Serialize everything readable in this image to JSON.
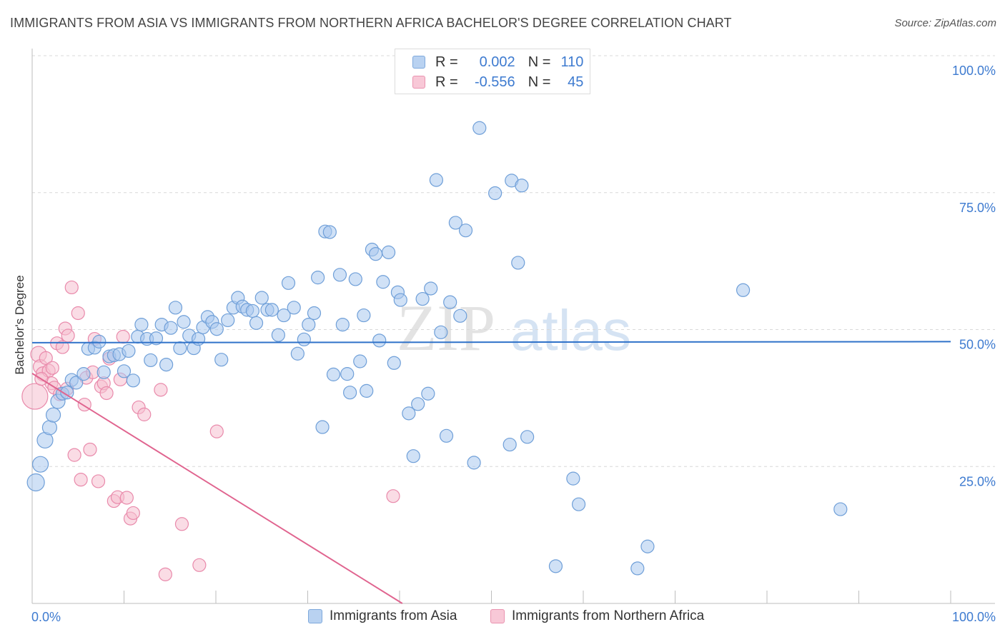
{
  "title": "IMMIGRANTS FROM ASIA VS IMMIGRANTS FROM NORTHERN AFRICA BACHELOR'S DEGREE CORRELATION CHART",
  "source": "Source: ZipAtlas.com",
  "watermark": {
    "part1": "ZIP",
    "part2": "atlas"
  },
  "stats": {
    "r_label": "R =",
    "n_label": "N =",
    "rows": [
      {
        "r": "0.002",
        "n": "110",
        "color": "#7ea9dc"
      },
      {
        "r": "-0.556",
        "n": "45",
        "color": "#ea93b0"
      }
    ]
  },
  "legend": {
    "items": [
      {
        "label": "Immigrants from Asia"
      },
      {
        "label": "Immigrants from Northern Africa"
      }
    ]
  },
  "colors": {
    "blue_fill": "#a9c8ee",
    "blue_stroke": "#6f9fd8",
    "blue_line": "#2f72c9",
    "pink_fill": "#f6bfd0",
    "pink_stroke": "#e98aab",
    "pink_line": "#e0648f",
    "axis_text": "#3e7bd0",
    "grid": "#d9d9d9"
  },
  "chart_data": {
    "type": "scatter",
    "title": "IMMIGRANTS FROM ASIA VS IMMIGRANTS FROM NORTHERN AFRICA BACHELOR'S DEGREE CORRELATION CHART",
    "xlabel": "",
    "ylabel": "Bachelor's Degree",
    "xlim": [
      0,
      100
    ],
    "ylim": [
      0,
      100
    ],
    "x_tick_labels": {
      "left": "0.0%",
      "right": "100.0%"
    },
    "y_ticks": [
      {
        "value": 100,
        "label": "100.0%"
      },
      {
        "value": 75,
        "label": "75.0%"
      },
      {
        "value": 50,
        "label": "50.0%"
      },
      {
        "value": 25,
        "label": "25.0%"
      }
    ],
    "series": [
      {
        "name": "Immigrants from Asia",
        "r": 0.002,
        "n": 110,
        "trend": {
          "x": [
            0,
            100
          ],
          "y": [
            47.6,
            47.8
          ]
        },
        "points": [
          [
            0.4,
            22.1,
            12
          ],
          [
            0.9,
            25.4,
            11
          ],
          [
            1.4,
            29.8,
            11
          ],
          [
            1.9,
            32.1,
            10
          ],
          [
            2.3,
            34.4,
            10
          ],
          [
            2.8,
            36.9,
            10
          ],
          [
            3.3,
            38.3,
            9
          ],
          [
            3.8,
            38.5,
            9
          ],
          [
            4.3,
            40.8,
            9
          ],
          [
            4.8,
            40.3,
            9
          ],
          [
            5.6,
            41.9,
            9
          ],
          [
            6.1,
            46.5,
            9
          ],
          [
            6.8,
            46.7,
            9
          ],
          [
            7.3,
            47.8,
            9
          ],
          [
            7.8,
            42.2,
            9
          ],
          [
            8.4,
            45.1,
            9
          ],
          [
            8.9,
            45.3,
            9
          ],
          [
            9.5,
            45.5,
            9
          ],
          [
            10.0,
            42.4,
            9
          ],
          [
            10.5,
            46.1,
            9
          ],
          [
            11.0,
            40.7,
            9
          ],
          [
            11.5,
            48.7,
            9
          ],
          [
            11.9,
            50.9,
            9
          ],
          [
            12.5,
            48.3,
            9
          ],
          [
            12.9,
            44.4,
            9
          ],
          [
            13.5,
            48.4,
            9
          ],
          [
            14.1,
            50.9,
            9
          ],
          [
            14.6,
            43.6,
            9
          ],
          [
            15.1,
            50.3,
            9
          ],
          [
            15.6,
            54.0,
            9
          ],
          [
            16.1,
            46.6,
            9
          ],
          [
            16.5,
            51.4,
            9
          ],
          [
            17.1,
            48.9,
            9
          ],
          [
            17.6,
            46.6,
            9
          ],
          [
            18.1,
            48.3,
            9
          ],
          [
            18.6,
            50.4,
            9
          ],
          [
            19.1,
            52.3,
            9
          ],
          [
            19.6,
            51.4,
            9
          ],
          [
            20.1,
            50.1,
            9
          ],
          [
            20.6,
            44.5,
            9
          ],
          [
            21.3,
            51.7,
            9
          ],
          [
            21.9,
            54.0,
            9
          ],
          [
            22.4,
            55.8,
            9
          ],
          [
            22.9,
            54.2,
            9
          ],
          [
            23.4,
            53.6,
            9
          ],
          [
            24.0,
            53.4,
            9
          ],
          [
            24.4,
            51.2,
            9
          ],
          [
            25.0,
            55.8,
            9
          ],
          [
            25.6,
            53.6,
            9
          ],
          [
            26.1,
            53.6,
            9
          ],
          [
            26.8,
            49.0,
            9
          ],
          [
            27.4,
            52.6,
            9
          ],
          [
            27.9,
            58.5,
            9
          ],
          [
            28.5,
            54.0,
            9
          ],
          [
            28.9,
            45.6,
            9
          ],
          [
            29.6,
            48.2,
            9
          ],
          [
            30.1,
            50.9,
            9
          ],
          [
            30.7,
            53.0,
            9
          ],
          [
            31.1,
            59.5,
            9
          ],
          [
            31.6,
            32.2,
            9
          ],
          [
            31.9,
            67.9,
            9
          ],
          [
            32.4,
            67.8,
            9
          ],
          [
            32.8,
            41.8,
            9
          ],
          [
            33.5,
            60.0,
            9
          ],
          [
            33.8,
            50.9,
            9
          ],
          [
            34.3,
            41.9,
            9
          ],
          [
            34.6,
            38.5,
            9
          ],
          [
            35.2,
            59.2,
            9
          ],
          [
            35.7,
            44.2,
            9
          ],
          [
            36.1,
            52.6,
            9
          ],
          [
            36.4,
            38.8,
            9
          ],
          [
            37.0,
            64.6,
            9
          ],
          [
            37.4,
            63.8,
            9
          ],
          [
            37.8,
            48.0,
            9
          ],
          [
            38.2,
            58.7,
            9
          ],
          [
            38.8,
            64.1,
            9
          ],
          [
            39.4,
            43.9,
            9
          ],
          [
            39.8,
            56.8,
            9
          ],
          [
            40.1,
            55.4,
            9
          ],
          [
            41.0,
            34.7,
            9
          ],
          [
            41.5,
            26.9,
            9
          ],
          [
            42.0,
            36.4,
            9
          ],
          [
            42.5,
            55.6,
            9
          ],
          [
            43.1,
            38.3,
            9
          ],
          [
            43.4,
            57.5,
            9
          ],
          [
            44.0,
            77.3,
            9
          ],
          [
            44.5,
            49.5,
            9
          ],
          [
            45.1,
            30.6,
            9
          ],
          [
            45.5,
            55.0,
            9
          ],
          [
            46.1,
            69.5,
            9
          ],
          [
            46.6,
            52.5,
            9
          ],
          [
            47.2,
            68.1,
            9
          ],
          [
            48.1,
            25.7,
            9
          ],
          [
            48.7,
            86.8,
            9
          ],
          [
            50.4,
            74.9,
            9
          ],
          [
            52.0,
            29.0,
            9
          ],
          [
            52.2,
            77.2,
            9
          ],
          [
            52.9,
            62.2,
            9
          ],
          [
            53.3,
            76.3,
            9
          ],
          [
            53.9,
            30.4,
            9
          ],
          [
            57.0,
            6.8,
            9
          ],
          [
            58.9,
            22.8,
            9
          ],
          [
            59.5,
            18.1,
            9
          ],
          [
            65.9,
            6.4,
            9
          ],
          [
            67.0,
            10.4,
            9
          ],
          [
            77.4,
            57.2,
            9
          ],
          [
            88.0,
            17.2,
            9
          ]
        ]
      },
      {
        "name": "Immigrants from Northern Africa",
        "r": -0.556,
        "n": 45,
        "trend": {
          "x": [
            0,
            40.3
          ],
          "y": [
            42.0,
            0
          ]
        },
        "points": [
          [
            0.3,
            37.8,
            18
          ],
          [
            0.7,
            45.5,
            11
          ],
          [
            0.9,
            43.2,
            10
          ],
          [
            1.2,
            41.9,
            10
          ],
          [
            1.5,
            44.8,
            9
          ],
          [
            1.8,
            42.5,
            9
          ],
          [
            2.1,
            40.2,
            9
          ],
          [
            2.4,
            39.4,
            9
          ],
          [
            2.7,
            47.5,
            9
          ],
          [
            3.0,
            38.2,
            9
          ],
          [
            3.3,
            46.8,
            9
          ],
          [
            3.6,
            50.2,
            9
          ],
          [
            3.9,
            48.9,
            9
          ],
          [
            4.3,
            57.7,
            9
          ],
          [
            4.6,
            27.1,
            9
          ],
          [
            5.0,
            53.0,
            9
          ],
          [
            5.3,
            22.6,
            9
          ],
          [
            5.7,
            36.3,
            9
          ],
          [
            5.9,
            41.2,
            9
          ],
          [
            6.3,
            28.1,
            9
          ],
          [
            6.8,
            48.3,
            9
          ],
          [
            7.2,
            22.3,
            9
          ],
          [
            7.5,
            39.6,
            9
          ],
          [
            7.8,
            40.2,
            9
          ],
          [
            8.1,
            38.4,
            9
          ],
          [
            8.4,
            44.7,
            9
          ],
          [
            8.9,
            18.7,
            9
          ],
          [
            9.3,
            19.4,
            9
          ],
          [
            9.6,
            40.9,
            9
          ],
          [
            9.9,
            48.7,
            9
          ],
          [
            10.3,
            19.3,
            9
          ],
          [
            10.7,
            15.5,
            9
          ],
          [
            11.0,
            16.5,
            9
          ],
          [
            11.6,
            35.8,
            9
          ],
          [
            12.2,
            34.5,
            9
          ],
          [
            14.0,
            39.0,
            9
          ],
          [
            14.5,
            5.3,
            9
          ],
          [
            16.3,
            14.5,
            9
          ],
          [
            18.2,
            7.0,
            9
          ],
          [
            20.1,
            31.4,
            9
          ],
          [
            39.3,
            19.6,
            9
          ],
          [
            1.0,
            41.0,
            9
          ],
          [
            2.2,
            43.0,
            9
          ],
          [
            6.6,
            42.2,
            9
          ],
          [
            3.8,
            39.2,
            9
          ]
        ]
      }
    ]
  }
}
